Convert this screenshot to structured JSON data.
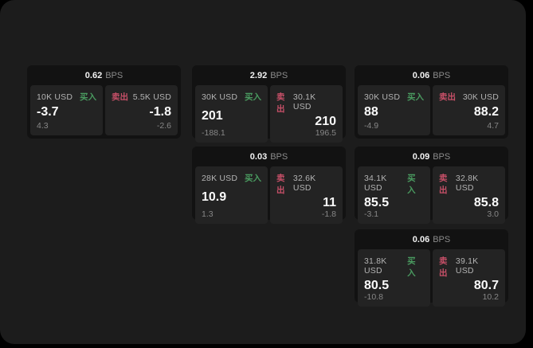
{
  "labels": {
    "bps_unit": "BPS",
    "buy": "买入",
    "sell": "卖出"
  },
  "colors": {
    "buy": "#4a9b60",
    "sell": "#c75068",
    "window_bg": "#1c1c1c",
    "card_bg": "#121212",
    "panel_bg": "#232323"
  },
  "cards": [
    {
      "col": 0,
      "row": 0,
      "bps": "0.62",
      "buy": {
        "amount": "10K USD",
        "value": "-3.7",
        "sub": "4.3"
      },
      "sell": {
        "amount": "5.5K USD",
        "value": "-1.8",
        "sub": "-2.6"
      }
    },
    {
      "col": 1,
      "row": 0,
      "bps": "2.92",
      "buy": {
        "amount": "30K USD",
        "value": "201",
        "sub": "-188.1"
      },
      "sell": {
        "amount": "30.1K USD",
        "value": "210",
        "sub": "196.5"
      }
    },
    {
      "col": 2,
      "row": 0,
      "bps": "0.06",
      "buy": {
        "amount": "30K USD",
        "value": "88",
        "sub": "-4.9"
      },
      "sell": {
        "amount": "30K USD",
        "value": "88.2",
        "sub": "4.7"
      }
    },
    {
      "col": 1,
      "row": 1,
      "bps": "0.03",
      "buy": {
        "amount": "28K USD",
        "value": "10.9",
        "sub": "1.3"
      },
      "sell": {
        "amount": "32.6K USD",
        "value": "11",
        "sub": "-1.8"
      }
    },
    {
      "col": 2,
      "row": 1,
      "bps": "0.09",
      "buy": {
        "amount": "34.1K USD",
        "value": "85.5",
        "sub": "-3.1"
      },
      "sell": {
        "amount": "32.8K USD",
        "value": "85.8",
        "sub": "3.0"
      }
    },
    {
      "col": 2,
      "row": 2,
      "bps": "0.06",
      "buy": {
        "amount": "31.8K USD",
        "value": "80.5",
        "sub": "-10.8"
      },
      "sell": {
        "amount": "39.1K USD",
        "value": "80.7",
        "sub": "10.2"
      }
    }
  ]
}
